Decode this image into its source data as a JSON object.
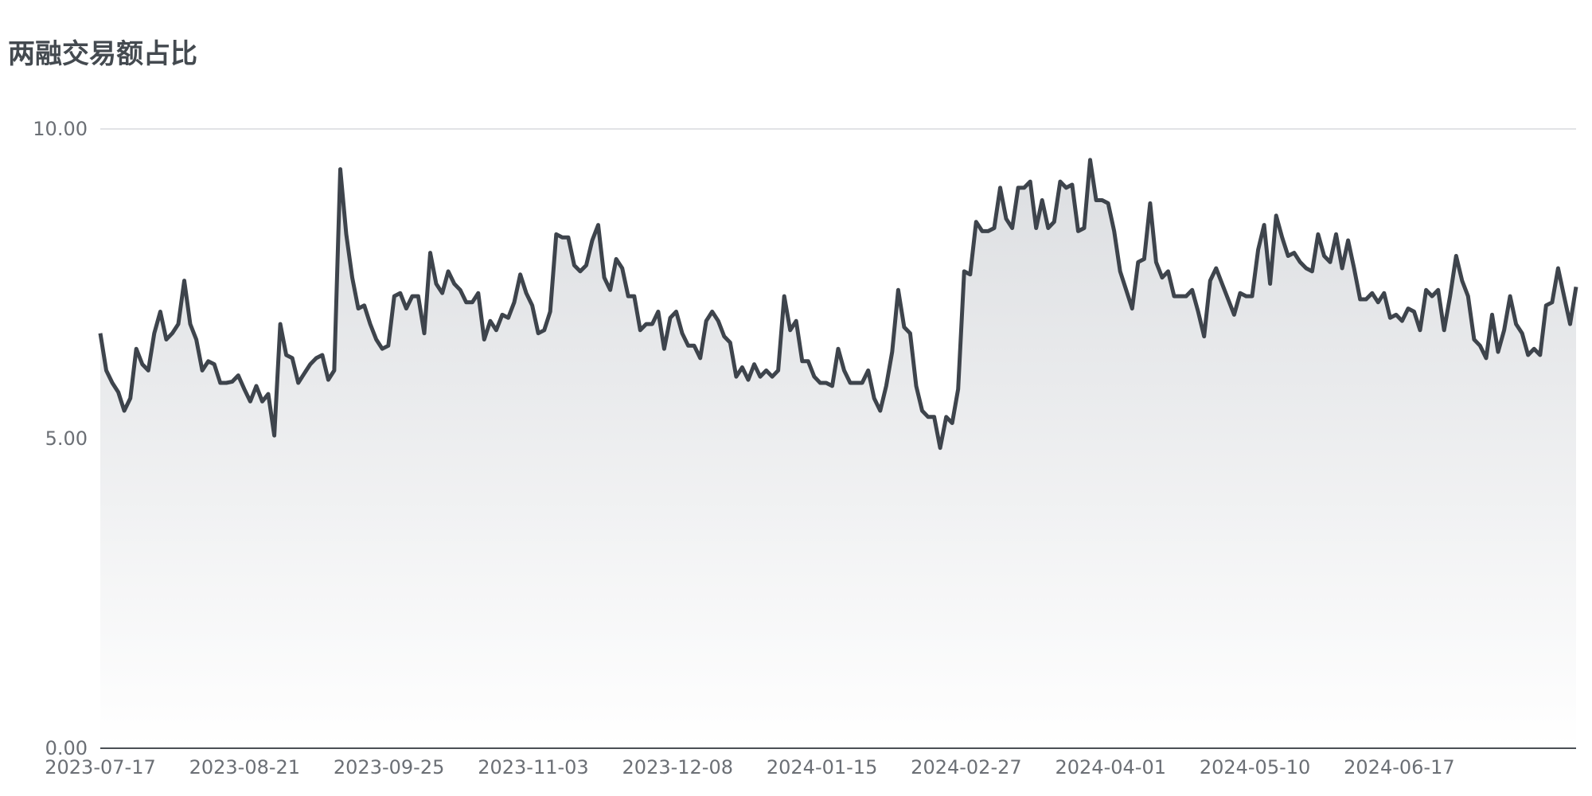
{
  "chart_data": {
    "type": "area",
    "title": "两融交易额占比",
    "xlabel": "",
    "ylabel": "",
    "ylim": [
      0,
      10
    ],
    "y_ticks": [
      "0.00",
      "5.00",
      "10.00"
    ],
    "x_ticks": [
      "2023-07-17",
      "2023-08-21",
      "2023-09-25",
      "2023-11-03",
      "2023-12-08",
      "2024-01-15",
      "2024-02-27",
      "2024-04-01",
      "2024-05-10",
      "2024-06-17"
    ],
    "grid": true,
    "legend": "none",
    "colors": {
      "line": "#3e444c",
      "fill_top": "#dcdee1",
      "fill_bottom": "#ffffff",
      "grid": "#d8dadd",
      "axis": "#4a4f55"
    },
    "series": [
      {
        "values": [
          6.7,
          6.1,
          5.9,
          5.75,
          5.45,
          5.65,
          6.45,
          6.2,
          6.1,
          6.7,
          7.05,
          6.6,
          6.7,
          6.85,
          7.55,
          6.85,
          6.6,
          6.1,
          6.25,
          6.2,
          5.9,
          5.9,
          5.92,
          6.02,
          5.8,
          5.6,
          5.85,
          5.6,
          5.72,
          5.05,
          6.85,
          6.35,
          6.3,
          5.9,
          6.05,
          6.2,
          6.3,
          6.35,
          5.95,
          6.1,
          9.35,
          8.3,
          7.6,
          7.1,
          7.15,
          6.85,
          6.6,
          6.45,
          6.5,
          7.3,
          7.35,
          7.1,
          7.3,
          7.3,
          6.7,
          8.0,
          7.5,
          7.35,
          7.7,
          7.5,
          7.4,
          7.2,
          7.2,
          7.35,
          6.6,
          6.9,
          6.75,
          7.0,
          6.95,
          7.2,
          7.65,
          7.35,
          7.15,
          6.7,
          6.75,
          7.05,
          8.3,
          8.25,
          8.25,
          7.8,
          7.7,
          7.8,
          8.2,
          8.45,
          7.6,
          7.4,
          7.9,
          7.75,
          7.3,
          7.3,
          6.75,
          6.85,
          6.85,
          7.05,
          6.45,
          6.95,
          7.05,
          6.7,
          6.5,
          6.5,
          6.3,
          6.9,
          7.05,
          6.9,
          6.65,
          6.55,
          6.0,
          6.15,
          5.95,
          6.2,
          6.0,
          6.1,
          6.0,
          6.1,
          7.3,
          6.75,
          6.9,
          6.25,
          6.25,
          6.0,
          5.9,
          5.9,
          5.85,
          6.45,
          6.1,
          5.9,
          5.9,
          5.9,
          6.1,
          5.65,
          5.45,
          5.85,
          6.4,
          7.4,
          6.8,
          6.7,
          5.85,
          5.45,
          5.35,
          5.35,
          4.85,
          5.35,
          5.25,
          5.8,
          7.7,
          7.65,
          8.5,
          8.35,
          8.35,
          8.4,
          9.05,
          8.55,
          8.4,
          9.05,
          9.05,
          9.15,
          8.4,
          8.85,
          8.4,
          8.5,
          9.15,
          9.05,
          9.1,
          8.35,
          8.4,
          9.5,
          8.85,
          8.85,
          8.8,
          8.35,
          7.7,
          7.4,
          7.1,
          7.85,
          7.9,
          8.8,
          7.85,
          7.6,
          7.7,
          7.3,
          7.3,
          7.3,
          7.4,
          7.05,
          6.65,
          7.55,
          7.75,
          7.5,
          7.25,
          7.0,
          7.35,
          7.3,
          7.3,
          8.05,
          8.45,
          7.5,
          8.6,
          8.25,
          7.95,
          8.0,
          7.85,
          7.75,
          7.7,
          8.3,
          7.95,
          7.85,
          8.3,
          7.75,
          8.2,
          7.75,
          7.25,
          7.25,
          7.35,
          7.2,
          7.35,
          6.95,
          7.0,
          6.9,
          7.1,
          7.05,
          6.75,
          7.4,
          7.3,
          7.4,
          6.75,
          7.3,
          7.95,
          7.55,
          7.3,
          6.6,
          6.5,
          6.3,
          7.0,
          6.4,
          6.75,
          7.3,
          6.85,
          6.7,
          6.35,
          6.45,
          6.35,
          7.15,
          7.2,
          7.75,
          7.3,
          6.85,
          7.45
        ]
      }
    ]
  }
}
